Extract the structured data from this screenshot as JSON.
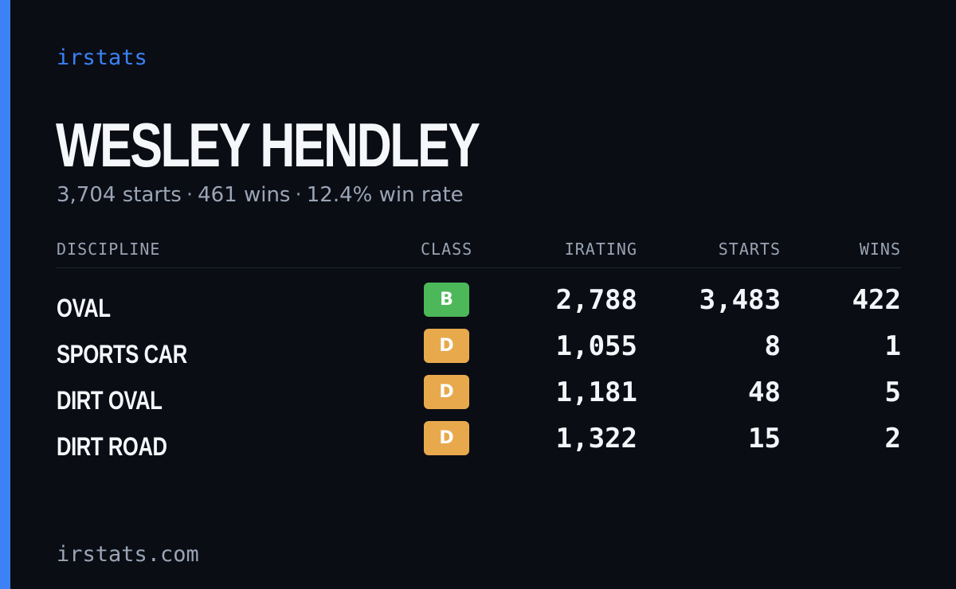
{
  "brand": "irstats",
  "driver": {
    "name": "WESLEY HENDLEY",
    "starts_text": "3,704 starts",
    "wins_text": "461 wins",
    "win_rate_text": "12.4% win rate",
    "separator": "·"
  },
  "table": {
    "headers": {
      "discipline": "DISCIPLINE",
      "class": "CLASS",
      "irating": "IRATING",
      "starts": "STARTS",
      "wins": "WINS"
    },
    "rows": [
      {
        "discipline": "OVAL",
        "class": "B",
        "class_color": "#4cb85a",
        "irating": "2,788",
        "starts": "3,483",
        "wins": "422"
      },
      {
        "discipline": "SPORTS CAR",
        "class": "D",
        "class_color": "#e8a94d",
        "irating": "1,055",
        "starts": "8",
        "wins": "1"
      },
      {
        "discipline": "DIRT OVAL",
        "class": "D",
        "class_color": "#e8a94d",
        "irating": "1,181",
        "starts": "48",
        "wins": "5"
      },
      {
        "discipline": "DIRT ROAD",
        "class": "D",
        "class_color": "#e8a94d",
        "irating": "1,322",
        "starts": "15",
        "wins": "2"
      }
    ]
  },
  "footer": "irstats.com",
  "colors": {
    "background": "#0a0d14",
    "accent": "#3b82f6",
    "muted_text": "#9aa5b6"
  }
}
